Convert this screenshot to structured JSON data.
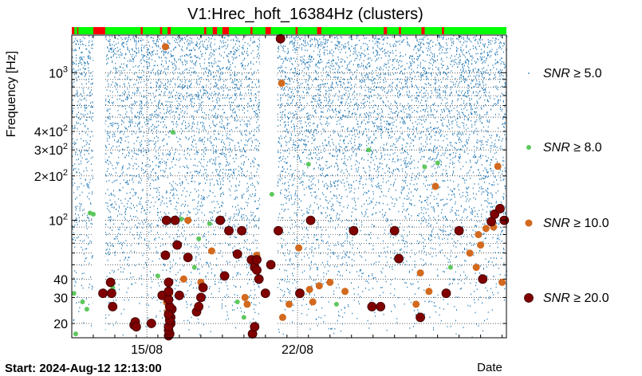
{
  "chart_data": {
    "type": "scatter",
    "title": "V1:Hrec_hoft_16384Hz (clusters)",
    "ylabel": "Frequency [Hz]",
    "xlabel": "Date",
    "yscale": "log",
    "ylim": [
      16,
      1800
    ],
    "xlim_days_from_start": [
      0,
      20.2
    ],
    "start_label": "Start: 2024-Aug-12 12:13:00",
    "x_ticks": [
      {
        "label": "15/08",
        "day": 3.49
      },
      {
        "label": "22/08",
        "day": 10.49
      }
    ],
    "y_ticks": [
      {
        "label": "20",
        "value": 20
      },
      {
        "label": "30",
        "value": 30
      },
      {
        "label": "40",
        "value": 40
      },
      {
        "label": "10^2",
        "value": 100,
        "base": "10",
        "exp": "2"
      },
      {
        "label": "2×10^2",
        "value": 200,
        "mant": "2×10",
        "exp": "2"
      },
      {
        "label": "3×10^2",
        "value": 300,
        "mant": "3×10",
        "exp": "2"
      },
      {
        "label": "4×10^2",
        "value": 400,
        "mant": "4×10",
        "exp": "2"
      },
      {
        "label": "10^3",
        "value": 1000,
        "base": "10",
        "exp": "3"
      }
    ],
    "legend": [
      {
        "label": "SNR ≥ 5.0",
        "snr": "SNR",
        "rest": " ≥ 5.0",
        "color": "#1f77b4",
        "size": 1
      },
      {
        "label": "SNR ≥ 8.0",
        "snr": "SNR",
        "rest": " ≥ 8.0",
        "color": "#5dc85d",
        "size": 3
      },
      {
        "label": "SNR ≥ 10.0",
        "snr": "SNR",
        "rest": " ≥ 10.0",
        "color": "#d2691e",
        "size": 4.5
      },
      {
        "label": "SNR ≥ 20.0",
        "snr": "SNR",
        "rest": " ≥ 20.0",
        "color": "#800000",
        "size": 5.5
      }
    ],
    "segment_bar": {
      "ok_color": "#00ff00",
      "bad_color": "#ff0000",
      "bad_intervals_days": [
        [
          0.0,
          0.12
        ],
        [
          0.25,
          0.3
        ],
        [
          1.0,
          1.55
        ],
        [
          3.2,
          3.3
        ],
        [
          4.1,
          4.2
        ],
        [
          4.45,
          4.6
        ],
        [
          6.15,
          6.25
        ],
        [
          6.55,
          6.75
        ],
        [
          7.0,
          7.3
        ],
        [
          8.3,
          8.4
        ],
        [
          9.0,
          9.25
        ],
        [
          10.4,
          10.5
        ],
        [
          11.4,
          11.6
        ],
        [
          14.5,
          14.65
        ],
        [
          15.2,
          15.3
        ],
        [
          16.25,
          16.4
        ],
        [
          17.2,
          17.3
        ]
      ]
    },
    "gaps_days": [
      [
        1.0,
        1.55
      ],
      [
        8.75,
        9.55
      ]
    ],
    "series": [
      {
        "name": "SNR ≥ 8.0",
        "points": [
          [
            0.1,
            32
          ],
          [
            0.18,
            17
          ],
          [
            0.5,
            28
          ],
          [
            0.7,
            25
          ],
          [
            0.85,
            112
          ],
          [
            1.0,
            110
          ],
          [
            1.9,
            35
          ],
          [
            4.7,
            395
          ],
          [
            5.1,
            102
          ],
          [
            5.3,
            55
          ],
          [
            5.7,
            48
          ],
          [
            5.9,
            75
          ],
          [
            6.4,
            95
          ],
          [
            7.7,
            28
          ],
          [
            8.0,
            22
          ],
          [
            8.7,
            46
          ],
          [
            9.3,
            150
          ],
          [
            11.0,
            240
          ],
          [
            13.8,
            300
          ],
          [
            16.4,
            230
          ],
          [
            17.0,
            245
          ],
          [
            17.6,
            48
          ],
          [
            19.2,
            40
          ],
          [
            4.0,
            42
          ],
          [
            12.3,
            27
          ]
        ]
      },
      {
        "name": "SNR ≥ 10.0",
        "points": [
          [
            4.35,
            1500
          ],
          [
            5.2,
            40
          ],
          [
            5.4,
            100
          ],
          [
            6.0,
            38
          ],
          [
            6.5,
            62
          ],
          [
            8.15,
            27
          ],
          [
            8.6,
            58
          ],
          [
            9.75,
            850
          ],
          [
            9.8,
            22
          ],
          [
            10.1,
            27
          ],
          [
            10.55,
            65
          ],
          [
            11.05,
            34
          ],
          [
            11.2,
            28
          ],
          [
            11.5,
            36
          ],
          [
            12.0,
            38
          ],
          [
            12.7,
            33
          ],
          [
            16.0,
            27
          ],
          [
            16.2,
            44
          ],
          [
            16.6,
            33
          ],
          [
            16.9,
            170
          ],
          [
            18.5,
            60
          ],
          [
            18.8,
            48
          ],
          [
            18.9,
            80
          ],
          [
            19.0,
            68
          ],
          [
            19.25,
            88
          ],
          [
            19.6,
            90
          ],
          [
            19.8,
            232
          ],
          [
            20.0,
            38
          ],
          [
            4.4,
            28
          ],
          [
            4.45,
            24
          ],
          [
            4.5,
            22
          ],
          [
            4.55,
            32
          ],
          [
            8.05,
            30
          ]
        ]
      },
      {
        "name": "SNR ≥ 20.0",
        "points": [
          [
            1.45,
            32
          ],
          [
            1.8,
            38
          ],
          [
            1.85,
            32
          ],
          [
            1.9,
            26
          ],
          [
            2.9,
            19.5
          ],
          [
            2.95,
            20.5
          ],
          [
            3.0,
            19
          ],
          [
            3.7,
            20
          ],
          [
            4.2,
            31
          ],
          [
            4.35,
            58
          ],
          [
            4.4,
            100
          ],
          [
            4.5,
            38
          ],
          [
            4.6,
            20
          ],
          [
            4.6,
            22
          ],
          [
            4.65,
            25
          ],
          [
            4.8,
            100
          ],
          [
            4.9,
            68
          ],
          [
            5.4,
            56
          ],
          [
            5.8,
            24
          ],
          [
            5.9,
            26
          ],
          [
            6.0,
            30
          ],
          [
            6.1,
            35
          ],
          [
            6.9,
            100
          ],
          [
            7.1,
            42
          ],
          [
            7.3,
            85
          ],
          [
            7.7,
            59
          ],
          [
            7.9,
            85
          ],
          [
            8.35,
            54
          ],
          [
            8.5,
            48
          ],
          [
            8.6,
            46
          ],
          [
            8.7,
            40
          ],
          [
            9.0,
            32
          ],
          [
            9.25,
            50
          ],
          [
            9.6,
            85
          ],
          [
            9.7,
            1700
          ],
          [
            10.6,
            32
          ],
          [
            11.1,
            100
          ],
          [
            13.1,
            85
          ],
          [
            13.95,
            26
          ],
          [
            14.35,
            26
          ],
          [
            15.0,
            85
          ],
          [
            15.2,
            55
          ],
          [
            16.2,
            22
          ],
          [
            17.4,
            32
          ],
          [
            18.0,
            85
          ],
          [
            19.1,
            40
          ],
          [
            19.5,
            98
          ],
          [
            19.65,
            110
          ],
          [
            19.9,
            120
          ],
          [
            20.1,
            100
          ],
          [
            4.5,
            16.5
          ],
          [
            4.55,
            17
          ],
          [
            4.5,
            18
          ],
          [
            4.5,
            19
          ],
          [
            4.55,
            21
          ],
          [
            4.5,
            23
          ],
          [
            4.55,
            26
          ],
          [
            4.5,
            29
          ],
          [
            4.5,
            33
          ],
          [
            5.0,
            31
          ],
          [
            8.4,
            17
          ],
          [
            8.5,
            19
          ],
          [
            8.6,
            54
          ]
        ]
      }
    ]
  }
}
